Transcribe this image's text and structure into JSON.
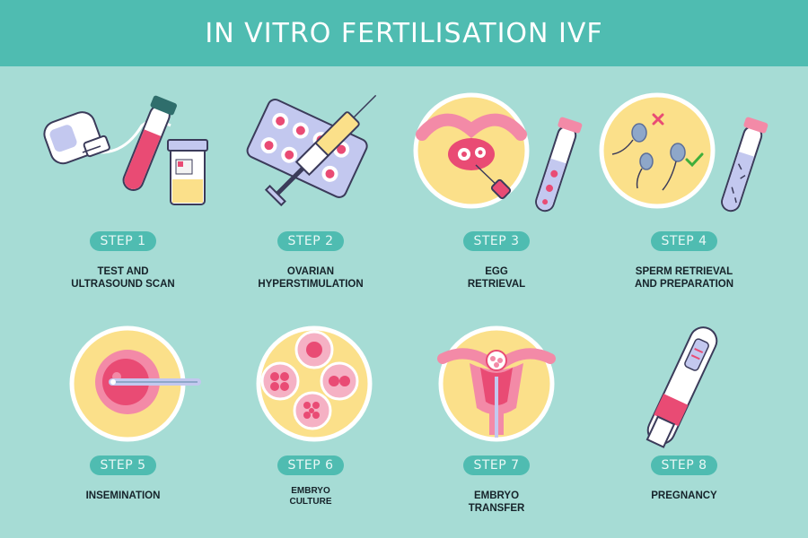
{
  "title": "IN VITRO FERTILISATION IVF",
  "steps": [
    {
      "label": "STEP 1",
      "caption": "TEST AND\nULTRASOUND SCAN"
    },
    {
      "label": "STEP 2",
      "caption": "OVARIAN\nHYPERSTIMULATION"
    },
    {
      "label": "STEP 3",
      "caption": "EGG\nRETRIEVAL"
    },
    {
      "label": "STEP 4",
      "caption": "SPERM RETRIEVAL\nAND PREPARATION"
    },
    {
      "label": "STEP 5",
      "caption": "INSEMINATION"
    },
    {
      "label": "STEP 6",
      "caption": "EMBRYO\nCULTURE"
    },
    {
      "label": "STEP 7",
      "caption": "EMBRYO\nTRANSFER"
    },
    {
      "label": "STEP 8",
      "caption": "PREGNANCY"
    }
  ],
  "colors": {
    "background": "#a6dcd5",
    "header": "#4fbcb1",
    "pill": "#4fbcb1",
    "pink": "#e94b74",
    "yellow": "#fbe08a",
    "lavender": "#c3c8ef"
  },
  "icons": [
    "ultrasound-probe-icon",
    "blood-tube-icon",
    "specimen-jar-icon",
    "pill-blister-icon",
    "syringe-icon",
    "ovary-needle-icon",
    "egg-tube-icon",
    "sperm-selection-icon",
    "sperm-tube-icon",
    "egg-injection-icon",
    "embryo-cells-icon",
    "uterus-icon",
    "pregnancy-test-icon"
  ]
}
